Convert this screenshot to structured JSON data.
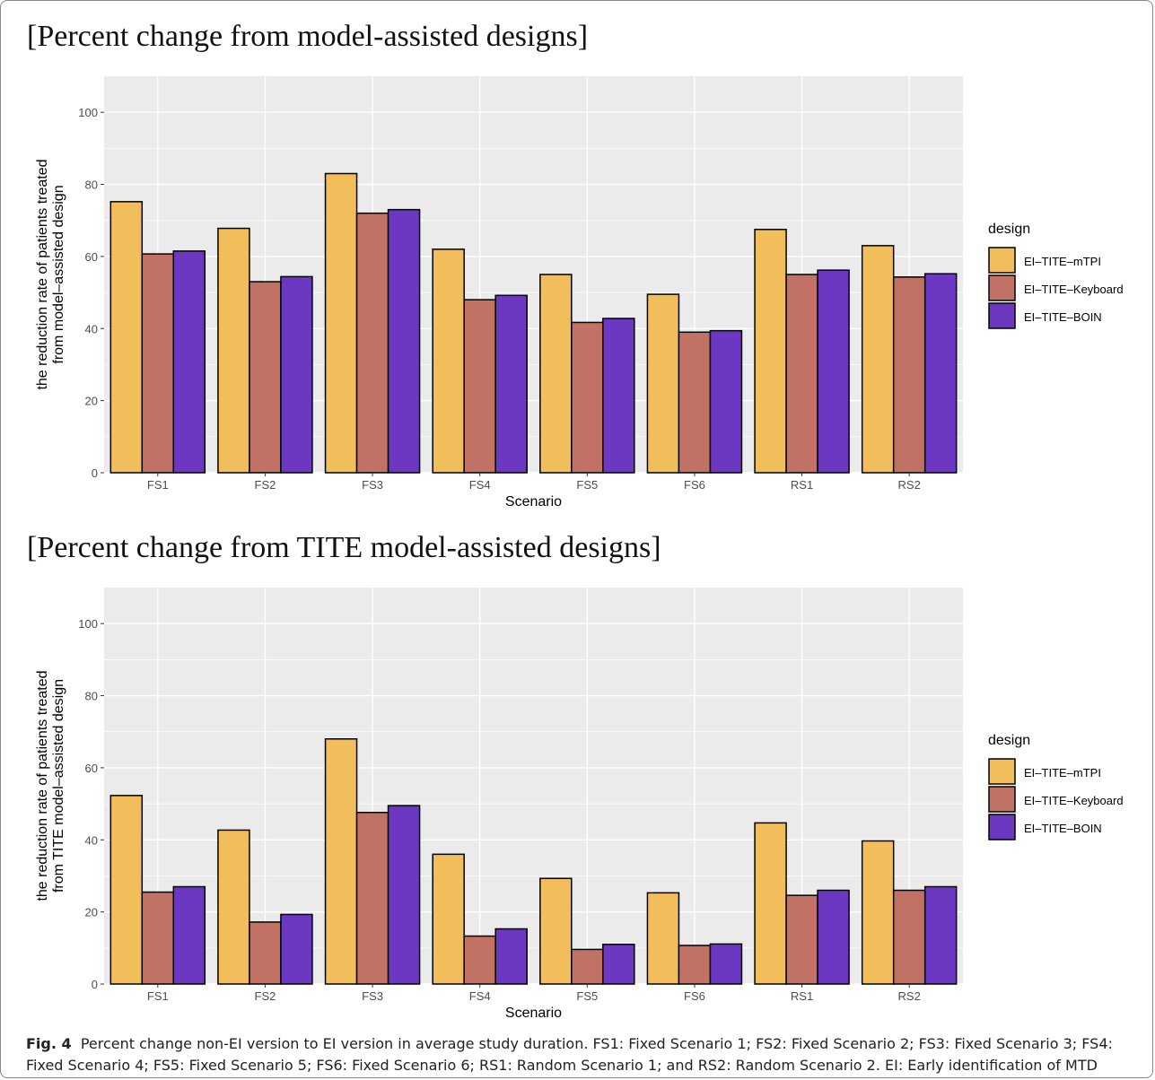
{
  "caption": {
    "label": "Fig. 4",
    "text": "Percent change non-EI version to EI version in average study duration. FS1: Fixed Scenario 1; FS2: Fixed Scenario 2; FS3: Fixed Scenario 3; FS4: Fixed Scenario 4; FS5: Fixed Scenario 5; FS6: Fixed Scenario 6; RS1: Random Scenario 1; and RS2: Random Scenario 2. EI: Early identification of MTD"
  },
  "colors": {
    "EI-TITE-mTPI": "#f2bd5b",
    "EI-TITE-Keyboard": "#c27264",
    "EI-TITE-BOIN": "#6c38c2",
    "panel_background": "#ebebeb",
    "gridline": "#ffffff"
  },
  "chart_data": [
    {
      "type": "bar",
      "title": "[Percent change from model-assisted designs]",
      "xlabel": "Scenario",
      "ylabel": [
        "the reduction rate of patients treated",
        "from model–assisted design"
      ],
      "categories": [
        "FS1",
        "FS2",
        "FS3",
        "FS4",
        "FS5",
        "FS6",
        "RS1",
        "RS2"
      ],
      "ylim": [
        0,
        110
      ],
      "yticks": [
        0,
        20,
        40,
        60,
        80,
        100
      ],
      "grid": true,
      "legend": {
        "title": "design",
        "position": "right"
      },
      "series": [
        {
          "name": "EI–TITE–mTPI",
          "values": [
            75.2,
            67.8,
            83.0,
            62.0,
            55.0,
            49.5,
            67.5,
            63.0
          ]
        },
        {
          "name": "EI–TITE–Keyboard",
          "values": [
            60.7,
            53.0,
            72.0,
            48.0,
            41.7,
            39.0,
            55.0,
            54.3
          ]
        },
        {
          "name": "EI–TITE–BOIN",
          "values": [
            61.5,
            54.4,
            73.0,
            49.2,
            42.8,
            39.4,
            56.2,
            55.2
          ]
        }
      ]
    },
    {
      "type": "bar",
      "title": "[Percent change from TITE model-assisted designs]",
      "xlabel": "Scenario",
      "ylabel": [
        "the reduction rate of patients treated",
        "from TITE model–assisted design"
      ],
      "categories": [
        "FS1",
        "FS2",
        "FS3",
        "FS4",
        "FS5",
        "FS6",
        "RS1",
        "RS2"
      ],
      "ylim": [
        0,
        110
      ],
      "yticks": [
        0,
        20,
        40,
        60,
        80,
        100
      ],
      "grid": true,
      "legend": {
        "title": "design",
        "position": "right"
      },
      "series": [
        {
          "name": "EI–TITE–mTPI",
          "values": [
            52.3,
            42.7,
            68.0,
            36.0,
            29.3,
            25.3,
            44.7,
            39.7
          ]
        },
        {
          "name": "EI–TITE–Keyboard",
          "values": [
            25.5,
            17.2,
            47.6,
            13.3,
            9.6,
            10.7,
            24.6,
            26.0
          ]
        },
        {
          "name": "EI–TITE–BOIN",
          "values": [
            27.0,
            19.3,
            49.5,
            15.3,
            11.0,
            11.1,
            26.0,
            27.0
          ]
        }
      ]
    }
  ]
}
